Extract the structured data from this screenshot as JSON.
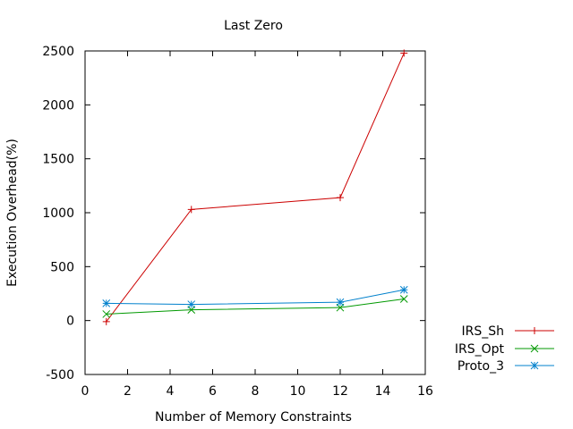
{
  "chart_data": {
    "type": "line",
    "title": "Last Zero",
    "xlabel": "Number of Memory Constraints",
    "ylabel": "Execution Overhead(%)",
    "xlim": [
      0,
      16
    ],
    "ylim": [
      -500,
      2500
    ],
    "xticks": [
      0,
      2,
      4,
      6,
      8,
      10,
      12,
      14,
      16
    ],
    "yticks": [
      -500,
      0,
      500,
      1000,
      1500,
      2000,
      2500
    ],
    "grid": false,
    "legend_position": "outside-right-bottom",
    "series": [
      {
        "name": "IRS_Sh",
        "color": "#cc0000",
        "marker": "plus",
        "x": [
          1,
          5,
          12,
          15
        ],
        "y": [
          -10,
          1030,
          1140,
          2480
        ]
      },
      {
        "name": "IRS_Opt",
        "color": "#009900",
        "marker": "cross",
        "x": [
          1,
          5,
          12,
          15
        ],
        "y": [
          60,
          100,
          120,
          200
        ]
      },
      {
        "name": "Proto_3",
        "color": "#0080cc",
        "marker": "star",
        "x": [
          1,
          5,
          12,
          15
        ],
        "y": [
          160,
          150,
          170,
          285
        ]
      }
    ]
  }
}
